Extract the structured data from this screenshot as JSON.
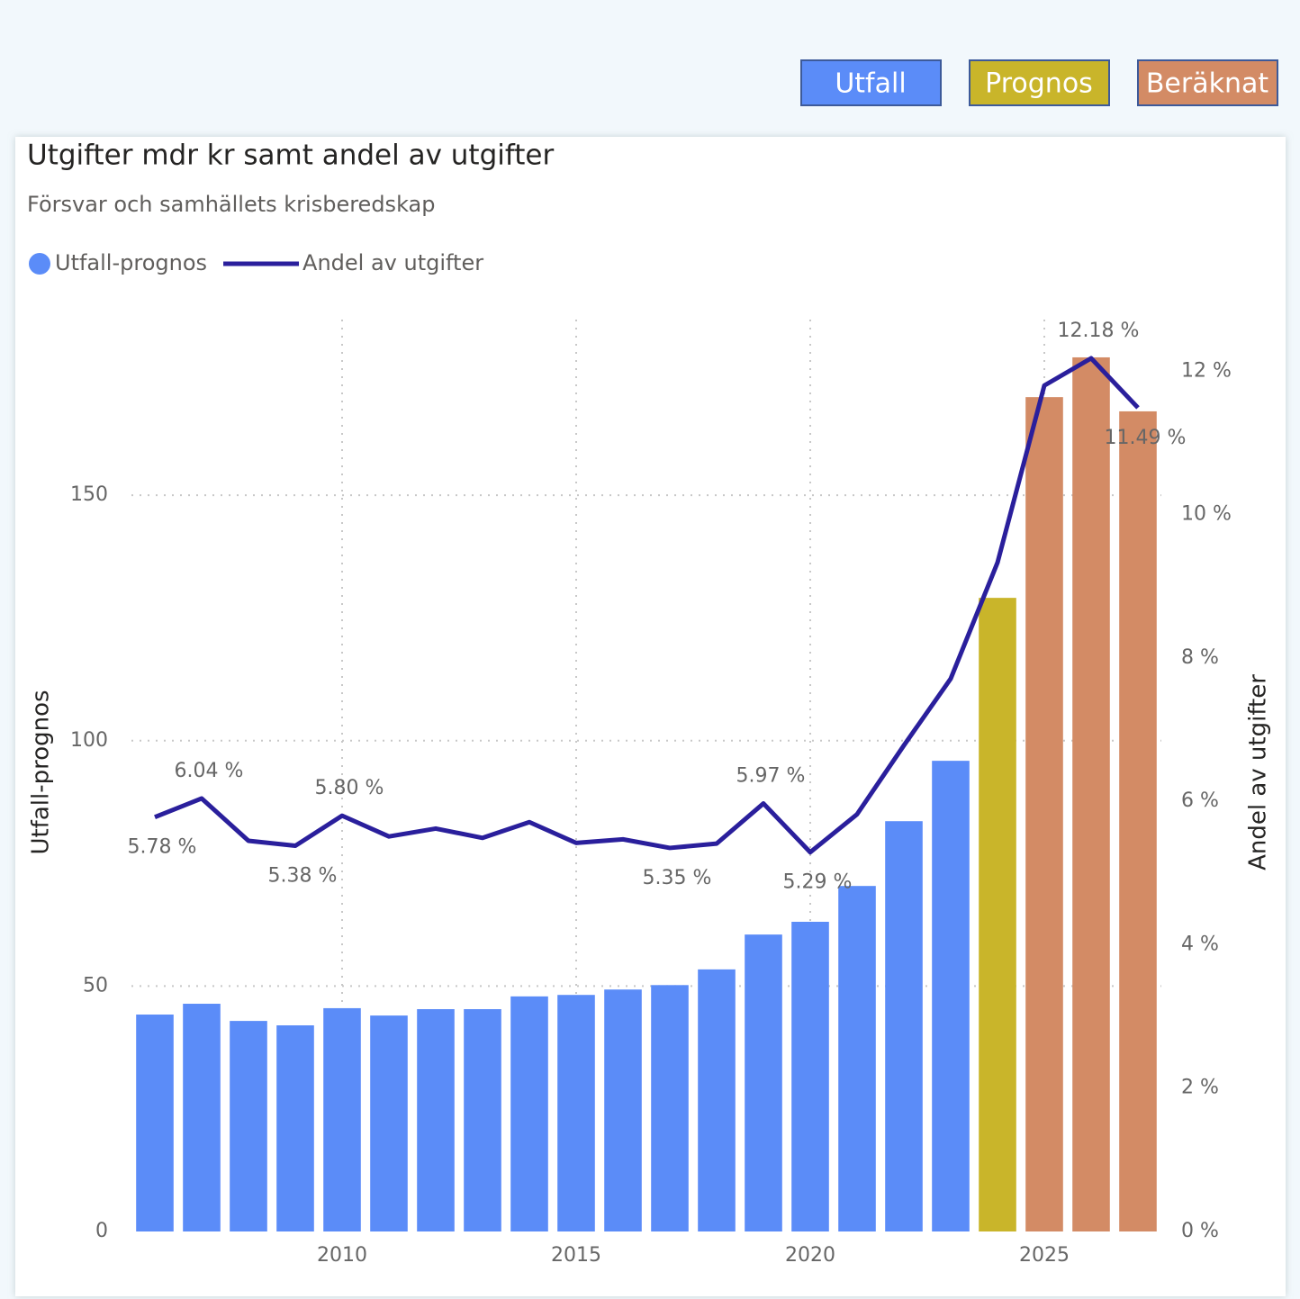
{
  "buttons": [
    {
      "label": "Utfall",
      "color": "#5b8cf8"
    },
    {
      "label": "Prognos",
      "color": "#c9b52a"
    },
    {
      "label": "Beräknat",
      "color": "#d38b65"
    }
  ],
  "chart_data": {
    "type": "combo",
    "title": "Utgifter mdr kr samt andel av utgifter",
    "subtitle": "Försvar och samhällets krisberedskap",
    "ylabel": "Utfall-prognos",
    "y2label": "Andel av utgifter",
    "x": [
      2006,
      2007,
      2008,
      2009,
      2010,
      2011,
      2012,
      2013,
      2014,
      2015,
      2016,
      2017,
      2018,
      2019,
      2020,
      2021,
      2022,
      2023,
      2024,
      2025,
      2026,
      2027
    ],
    "xlim": [
      2005.5,
      2027.5
    ],
    "xticks": [
      2010,
      2015,
      2020,
      2025
    ],
    "ylim": [
      0,
      185.8
    ],
    "yticks": [
      0,
      50,
      100,
      150
    ],
    "y2lim": [
      0,
      12.72
    ],
    "y2ticks": [
      {
        "value": 0,
        "label": "0 %"
      },
      {
        "value": 2,
        "label": "2 %"
      },
      {
        "value": 4,
        "label": "4 %"
      },
      {
        "value": 6,
        "label": "6 %"
      },
      {
        "value": 8,
        "label": "8 %"
      },
      {
        "value": 10,
        "label": "10 %"
      },
      {
        "value": 12,
        "label": "12 %"
      }
    ],
    "grid": true,
    "series": [
      {
        "name": "Utfall-prognos",
        "type": "bar",
        "color": "#5b8cf8",
        "colors": [
          "#5b8cf8",
          "#5b8cf8",
          "#5b8cf8",
          "#5b8cf8",
          "#5b8cf8",
          "#5b8cf8",
          "#5b8cf8",
          "#5b8cf8",
          "#5b8cf8",
          "#5b8cf8",
          "#5b8cf8",
          "#5b8cf8",
          "#5b8cf8",
          "#5b8cf8",
          "#5b8cf8",
          "#5b8cf8",
          "#5b8cf8",
          "#5b8cf8",
          "#c9b52a",
          "#d38b65",
          "#d38b65",
          "#d38b65"
        ],
        "values": [
          44.2,
          46.4,
          42.9,
          42.0,
          45.5,
          44.0,
          45.3,
          45.3,
          47.9,
          48.2,
          49.3,
          50.2,
          53.4,
          60.5,
          63.1,
          70.4,
          83.6,
          95.9,
          129.1,
          170.0,
          178.1,
          167.1
        ]
      },
      {
        "name": "Andel av utgifter",
        "type": "line",
        "axis": "y2",
        "color": "#2a1f9c",
        "values": [
          5.78,
          6.04,
          5.45,
          5.38,
          5.8,
          5.51,
          5.62,
          5.49,
          5.71,
          5.42,
          5.47,
          5.35,
          5.41,
          5.97,
          5.29,
          5.82,
          6.78,
          7.71,
          9.33,
          11.8,
          12.18,
          11.49
        ],
        "value_labels": [
          "5.78 %",
          "6.04 %",
          null,
          "5.38 %",
          "5.80 %",
          null,
          null,
          null,
          null,
          null,
          null,
          "5.35 %",
          null,
          "5.97 %",
          "5.29 %",
          null,
          null,
          null,
          null,
          null,
          "12.18 %",
          "11.49 %"
        ]
      }
    ]
  }
}
